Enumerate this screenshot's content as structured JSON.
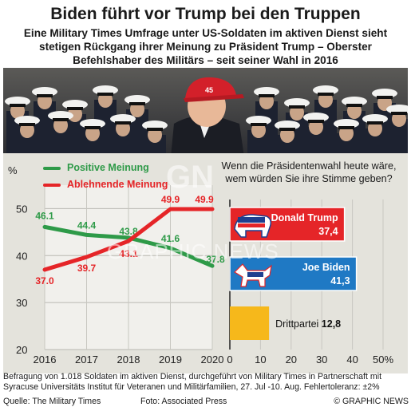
{
  "header": {
    "title": "Biden führt vor Trump bei den Truppen",
    "subtitle_lines": [
      "Eine Military Times Umfrage unter US-Soldaten im aktiven Dienst sieht",
      "stetigen Rückgang ihrer Meinung zu Präsident Trump – Oberster",
      "Befehlshaber des Militärs – seit seiner Wahl in 2016"
    ]
  },
  "chart_data": [
    {
      "type": "line",
      "ylabel": "%",
      "ylim": [
        20,
        55
      ],
      "yticks": [
        20,
        30,
        40,
        50
      ],
      "x": [
        "2016",
        "2017",
        "2018",
        "2019",
        "2020"
      ],
      "series": [
        {
          "name": "Positive Meinung",
          "color": "#2e9a48",
          "values": [
            46.1,
            44.4,
            43.8,
            41.6,
            37.8
          ],
          "labels": [
            "46.1",
            "44.4",
            "43.8",
            "41.6",
            "37.8"
          ]
        },
        {
          "name": "Ablehnende Meinung",
          "color": "#e52528",
          "values": [
            37.0,
            39.7,
            43.1,
            49.9,
            49.9
          ],
          "labels": [
            "37.0",
            "39.7",
            "43.1",
            "49.9",
            "49.9"
          ]
        }
      ],
      "grid": true,
      "legend": "top-left"
    },
    {
      "type": "bar",
      "orientation": "horizontal",
      "title_lines": [
        "Wenn die Präsidentenwahl heute wäre,",
        "wem würden Sie ihre Stimme geben?"
      ],
      "xlim": [
        0,
        50
      ],
      "xticks": [
        "0",
        "10",
        "20",
        "30",
        "40",
        "50%"
      ],
      "xtick_values": [
        0,
        10,
        20,
        30,
        40,
        50
      ],
      "categories": [
        "Donald Trump",
        "Joe Biden",
        "Drittpartei"
      ],
      "values": [
        37.4,
        41.3,
        12.8
      ],
      "value_labels": [
        "37,4",
        "41,3",
        "12,8"
      ],
      "colors": [
        "#e52528",
        "#1f79c4",
        "#f6b81b"
      ],
      "icons": [
        "republican-elephant-icon",
        "democrat-donkey-icon",
        ""
      ]
    }
  ],
  "photo": {
    "badge_text": "45"
  },
  "footnote_lines": [
    "Befragung von 1.018 Soldaten im aktiven Dienst, durchgeführt von Military Times in Partnerschaft mit",
    "Syracuse Universitäts Institut für Veteranen und Militärfamilien, 27. Jul -10. Aug. Fehlertoleranz: ±2%"
  ],
  "footer": {
    "source": "Quelle: The Military Times",
    "photo_credit": "Foto: Associated Press",
    "copyright": "© GRAPHIC NEWS"
  },
  "watermark": {
    "logo": "GN",
    "text": "GRAPHIC NEWS"
  }
}
